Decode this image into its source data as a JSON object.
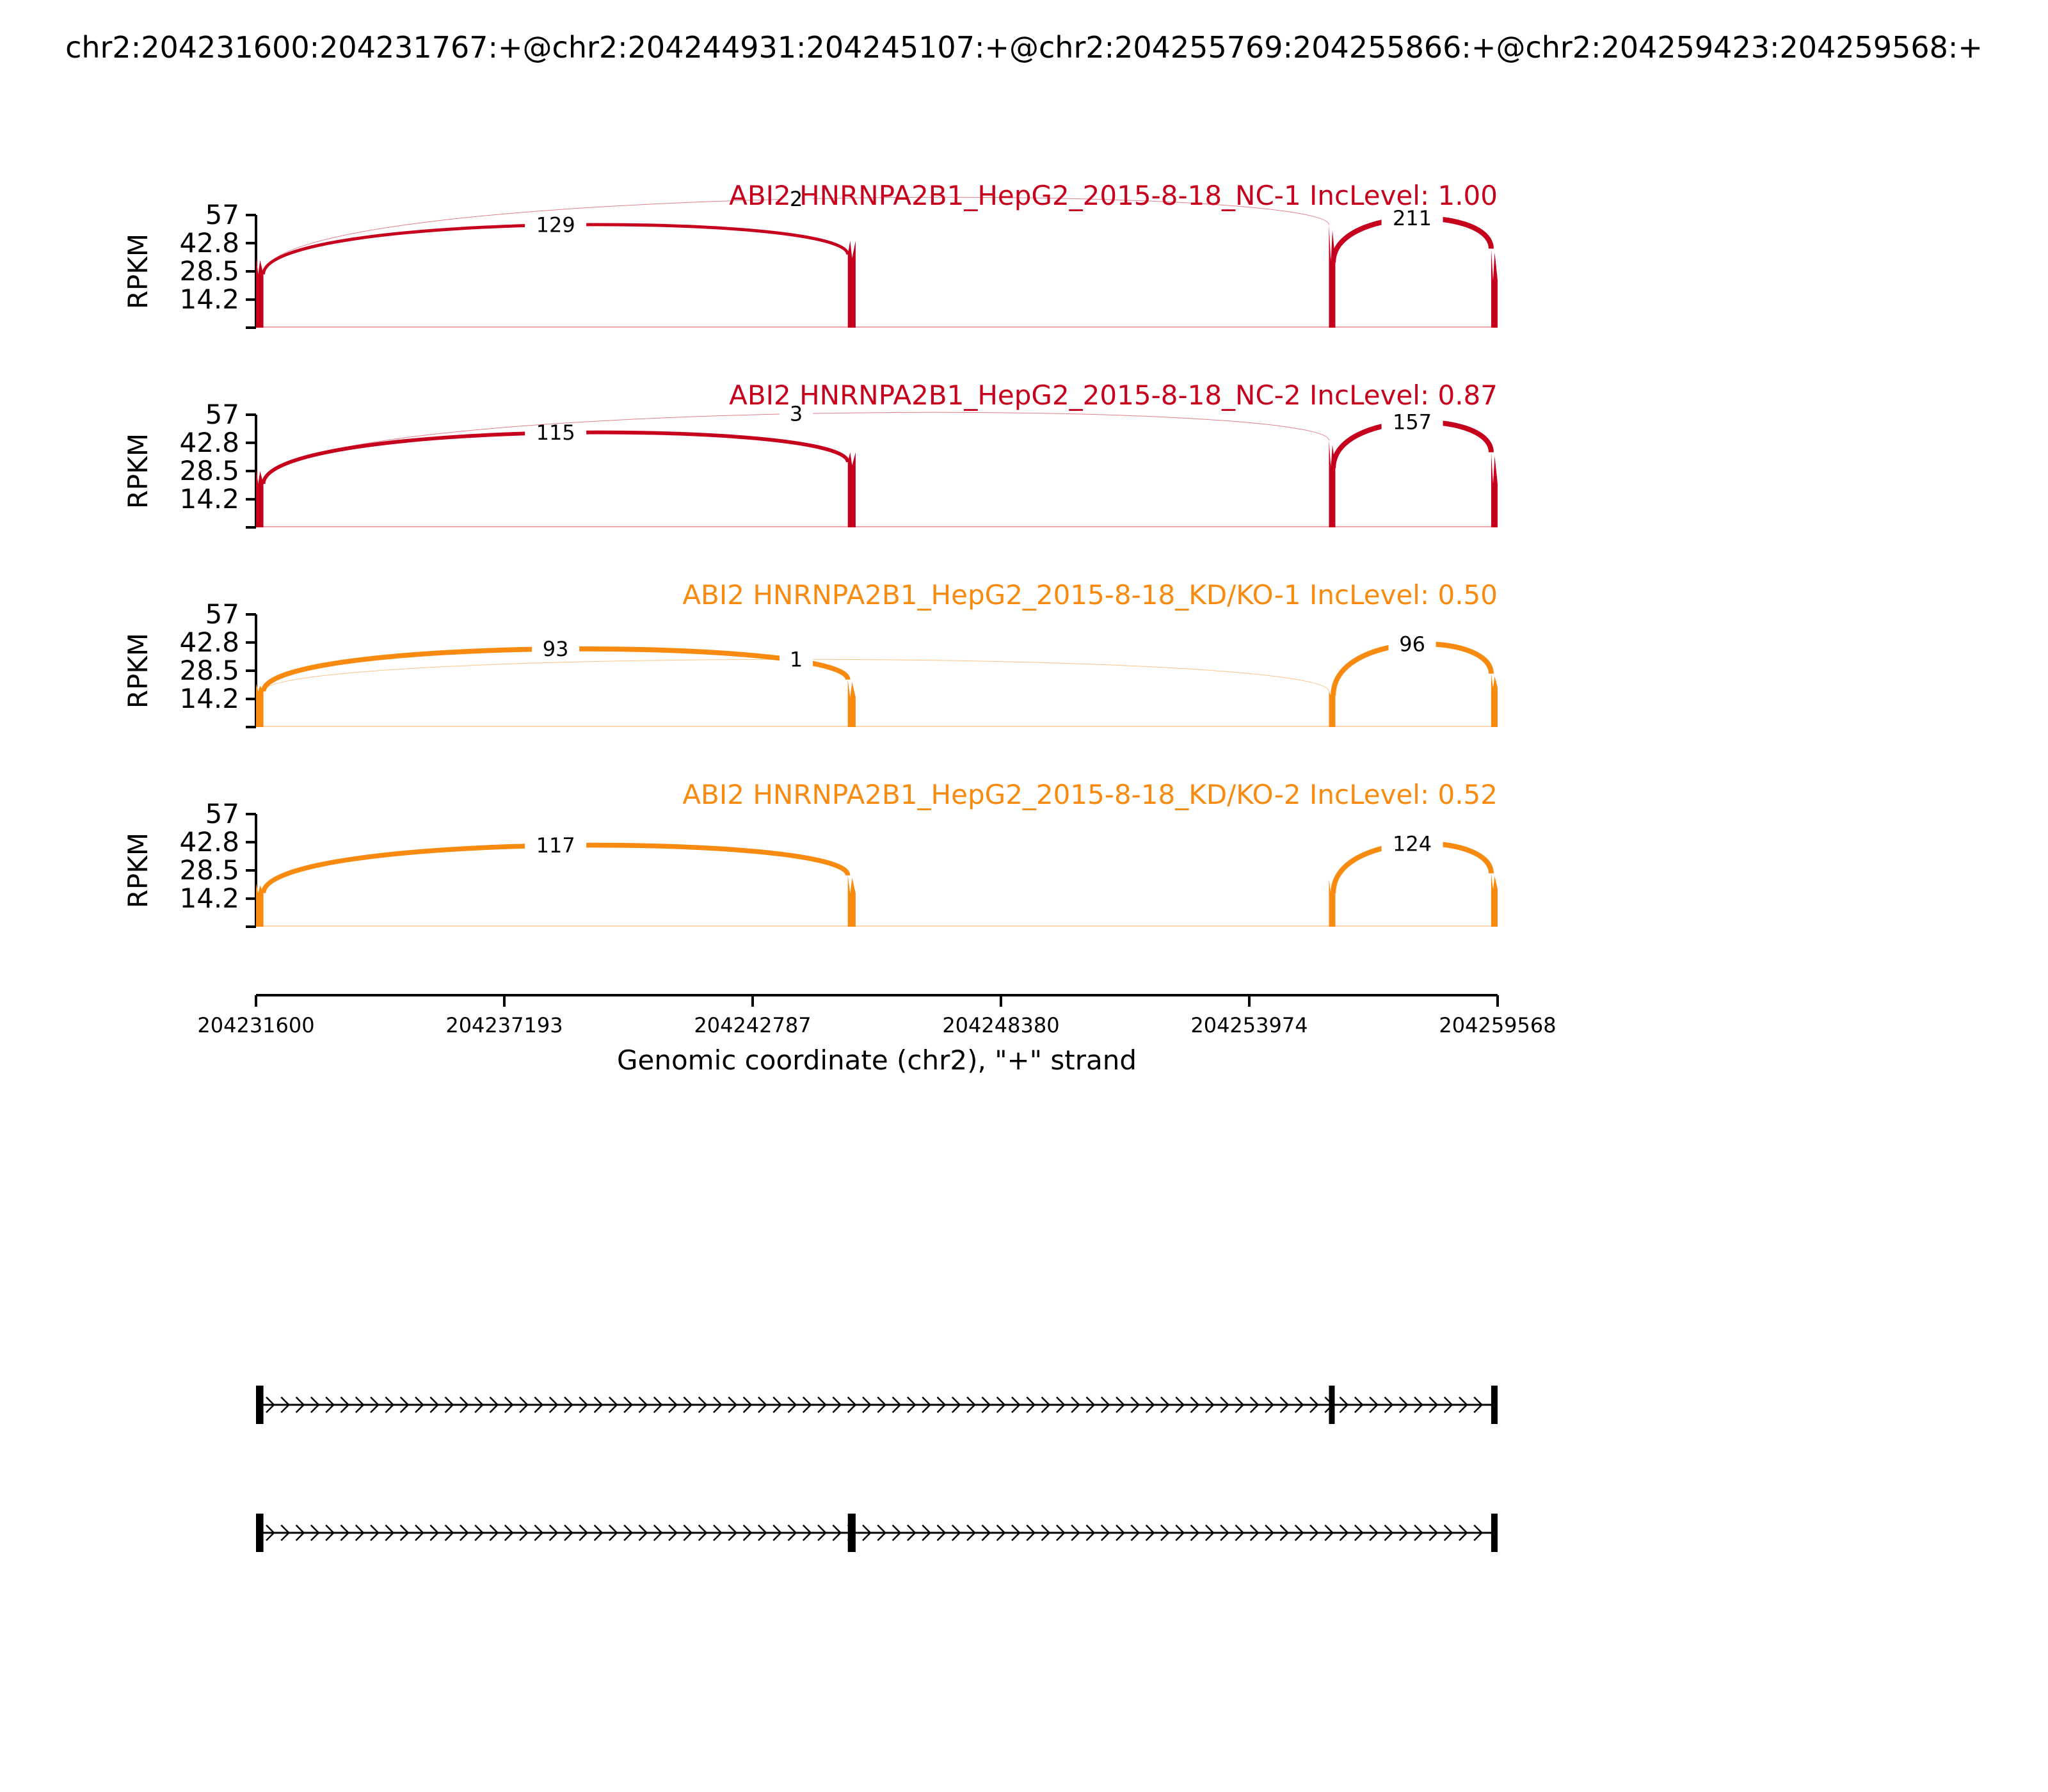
{
  "figure": {
    "title": "chr2:204231600:204231767:+@chr2:204244931:204245107:+@chr2:204255769:204255866:+@chr2:204259423:204259568:+"
  },
  "colors": {
    "nc": "#c6001c",
    "kd": "#f88a10",
    "axis": "#000000"
  },
  "chart_data": {
    "type": "sashimi",
    "xlabel": "Genomic coordinate (chr2), \"+\" strand",
    "ylabel": "RPKM",
    "xlim": [
      204231600,
      204259568
    ],
    "xticks": [
      204231600,
      204237193,
      204242787,
      204248380,
      204253974,
      204259568
    ],
    "ylim": [
      0,
      57
    ],
    "yticks": [
      14.2,
      28.5,
      42.8,
      57
    ],
    "exons": [
      [
        204231600,
        204231767
      ],
      [
        204244931,
        204245107
      ],
      [
        204255769,
        204255866
      ],
      [
        204259423,
        204259568
      ]
    ],
    "panels": [
      {
        "label": "ABI2 HNRNPA2B1_HepG2_2015-8-18_NC-1 IncLevel: 1.00",
        "color_key": "nc",
        "exon_heights": [
          [
            36,
            27
          ],
          [
            37,
            44
          ],
          [
            52,
            33
          ],
          [
            40,
            24
          ]
        ],
        "junctions": [
          {
            "start": 204231767,
            "end": 204244931,
            "count": 129,
            "side": "above"
          },
          {
            "start": 204231767,
            "end": 204255769,
            "count": 2,
            "side": "above"
          },
          {
            "start": 204255866,
            "end": 204259423,
            "count": 211,
            "side": "above"
          }
        ]
      },
      {
        "label": "ABI2 HNRNPA2B1_HepG2_2015-8-18_NC-2 IncLevel: 0.87",
        "color_key": "nc",
        "exon_heights": [
          [
            30,
            22
          ],
          [
            33,
            38
          ],
          [
            44,
            30
          ],
          [
            38,
            22
          ]
        ],
        "junctions": [
          {
            "start": 204231767,
            "end": 204244931,
            "count": 115,
            "side": "above"
          },
          {
            "start": 204231767,
            "end": 204255769,
            "count": 3,
            "side": "above"
          },
          {
            "start": 204255866,
            "end": 204259423,
            "count": 157,
            "side": "above"
          }
        ]
      },
      {
        "label": "ABI2 HNRNPA2B1_HepG2_2015-8-18_KD/KO-1 IncLevel: 0.50",
        "color_key": "kd",
        "exon_heights": [
          [
            22,
            18
          ],
          [
            24,
            15
          ],
          [
            18,
            16
          ],
          [
            27,
            20
          ]
        ],
        "junctions": [
          {
            "start": 204231767,
            "end": 204244931,
            "count": 93,
            "side": "above"
          },
          {
            "start": 204231767,
            "end": 204255769,
            "count": 1,
            "side": "above"
          },
          {
            "start": 204255866,
            "end": 204259423,
            "count": 96,
            "side": "above"
          }
        ]
      },
      {
        "label": "ABI2 HNRNPA2B1_HepG2_2015-8-18_KD/KO-2 IncLevel: 0.52",
        "color_key": "kd",
        "exon_heights": [
          [
            22,
            17
          ],
          [
            26,
            17
          ],
          [
            24,
            17
          ],
          [
            27,
            19
          ]
        ],
        "junctions": [
          {
            "start": 204231767,
            "end": 204244931,
            "count": 117,
            "side": "above"
          },
          {
            "start": 204255866,
            "end": 204259423,
            "count": 124,
            "side": "above"
          }
        ]
      }
    ],
    "isoforms": [
      {
        "exons": [
          [
            204231600,
            204231767
          ],
          [
            204255769,
            204255866
          ],
          [
            204259423,
            204259568
          ]
        ]
      },
      {
        "exons": [
          [
            204231600,
            204231767
          ],
          [
            204244931,
            204245107
          ],
          [
            204259423,
            204259568
          ]
        ]
      }
    ]
  }
}
